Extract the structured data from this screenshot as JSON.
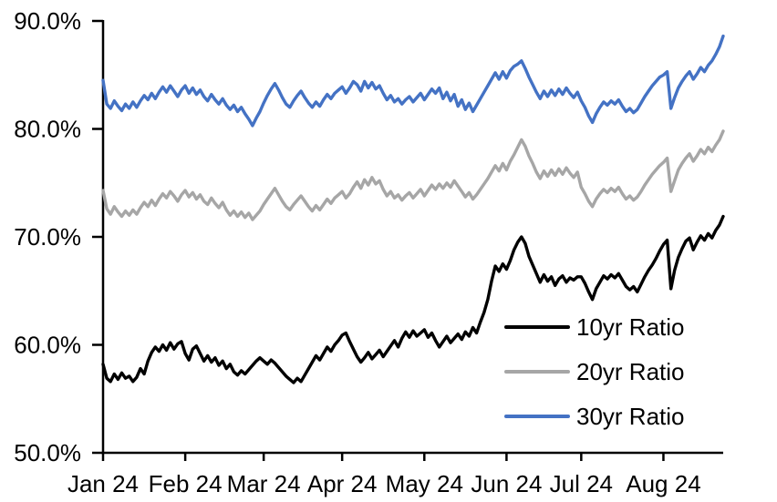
{
  "chart_data": {
    "type": "line",
    "title": "",
    "xlabel": "",
    "ylabel": "",
    "grid": false,
    "ylim": [
      50,
      90
    ],
    "y_tick_step": 10,
    "y_tick_labels": [
      "90.0%",
      "80.0%",
      "70.0%",
      "60.0%",
      "50.0%"
    ],
    "x_tick_labels": [
      "Jan 24",
      "Feb 24",
      "Mar 24",
      "Apr 24",
      "May 24",
      "Jun 24",
      "Jul 24",
      "Aug 24"
    ],
    "month_start_indices": [
      0,
      22,
      43,
      64,
      86,
      108,
      128,
      150
    ],
    "n_points": 167,
    "legend_position": "inside-lower-right",
    "axis_color": "#000000",
    "series": [
      {
        "name": "10yr Ratio",
        "color": "#000000",
        "values": [
          58.2,
          56.9,
          56.6,
          57.3,
          56.8,
          57.4,
          56.9,
          57.1,
          56.6,
          57.0,
          57.8,
          57.3,
          58.5,
          59.3,
          59.8,
          59.4,
          60.0,
          59.5,
          60.2,
          59.6,
          60.1,
          60.3,
          59.2,
          58.6,
          59.6,
          59.9,
          59.2,
          58.5,
          59.0,
          58.4,
          58.8,
          58.1,
          58.5,
          57.8,
          58.2,
          57.5,
          57.2,
          57.6,
          57.3,
          57.7,
          58.1,
          58.5,
          58.8,
          58.5,
          58.2,
          58.6,
          58.3,
          57.9,
          57.5,
          57.1,
          56.8,
          56.5,
          56.9,
          56.6,
          57.2,
          57.8,
          58.4,
          59.0,
          58.6,
          59.2,
          59.8,
          59.4,
          60.0,
          60.4,
          60.9,
          61.1,
          60.3,
          59.6,
          58.9,
          58.4,
          58.8,
          59.3,
          58.7,
          59.1,
          59.5,
          58.9,
          59.4,
          59.9,
          60.4,
          59.8,
          60.6,
          61.2,
          60.7,
          61.3,
          60.8,
          61.1,
          61.4,
          60.7,
          61.1,
          60.4,
          59.8,
          60.3,
          60.8,
          60.2,
          60.6,
          61.0,
          60.5,
          61.2,
          60.8,
          61.6,
          61.1,
          62.1,
          63.0,
          64.2,
          65.9,
          67.3,
          66.8,
          67.5,
          67.0,
          67.8,
          68.8,
          69.5,
          70.0,
          69.4,
          68.2,
          67.4,
          66.6,
          65.8,
          66.5,
          65.9,
          66.3,
          65.5,
          66.1,
          66.4,
          65.8,
          66.2,
          66.0,
          66.3,
          66.3,
          65.7,
          64.9,
          64.2,
          65.2,
          65.8,
          66.4,
          66.1,
          66.5,
          66.2,
          66.6,
          66.0,
          65.4,
          65.1,
          65.4,
          64.9,
          65.6,
          66.3,
          66.9,
          67.4,
          68.0,
          68.7,
          69.3,
          69.7,
          65.2,
          66.9,
          68.1,
          68.9,
          69.6,
          69.9,
          68.8,
          69.5,
          70.1,
          69.7,
          70.3,
          69.9,
          70.6,
          71.1,
          71.9
        ]
      },
      {
        "name": "20yr Ratio",
        "color": "#A6A6A6",
        "values": [
          74.3,
          72.6,
          72.1,
          72.8,
          72.3,
          71.9,
          72.4,
          72.0,
          72.5,
          72.1,
          72.7,
          73.2,
          72.8,
          73.4,
          72.9,
          73.5,
          74.0,
          73.6,
          74.2,
          73.8,
          73.3,
          73.9,
          74.3,
          73.7,
          74.1,
          73.5,
          73.9,
          73.3,
          73.0,
          73.6,
          73.1,
          72.7,
          73.2,
          72.5,
          72.0,
          72.4,
          71.9,
          72.3,
          71.8,
          72.2,
          71.6,
          72.0,
          72.4,
          73.0,
          73.5,
          74.0,
          74.5,
          73.9,
          73.3,
          72.8,
          72.5,
          73.0,
          73.4,
          73.8,
          73.3,
          72.8,
          72.4,
          72.9,
          72.5,
          73.0,
          73.5,
          73.1,
          73.6,
          73.9,
          74.2,
          73.6,
          74.0,
          74.6,
          75.1,
          74.5,
          75.3,
          74.8,
          75.5,
          74.9,
          75.2,
          74.4,
          73.8,
          74.2,
          73.6,
          73.9,
          73.4,
          73.8,
          74.1,
          73.6,
          74.0,
          74.4,
          73.8,
          74.3,
          74.8,
          74.4,
          74.9,
          74.5,
          75.0,
          74.6,
          75.2,
          74.7,
          74.2,
          73.7,
          74.1,
          73.5,
          73.9,
          74.4,
          74.9,
          75.4,
          76.0,
          76.6,
          76.1,
          76.8,
          76.2,
          77.0,
          77.6,
          78.3,
          79.0,
          78.4,
          77.5,
          76.8,
          76.0,
          75.4,
          76.1,
          75.6,
          76.2,
          75.7,
          76.3,
          75.8,
          76.4,
          75.9,
          75.5,
          76.0,
          74.6,
          74.0,
          73.3,
          72.8,
          73.5,
          74.0,
          74.4,
          74.1,
          74.5,
          74.2,
          74.6,
          74.0,
          73.5,
          73.8,
          73.4,
          73.7,
          74.2,
          74.8,
          75.3,
          75.8,
          76.2,
          76.6,
          76.9,
          77.3,
          74.2,
          75.2,
          76.2,
          76.8,
          77.3,
          77.7,
          77.0,
          77.5,
          78.1,
          77.7,
          78.3,
          77.9,
          78.5,
          79.0,
          79.8
        ]
      },
      {
        "name": "30yr Ratio",
        "color": "#4472C4",
        "values": [
          84.5,
          82.3,
          81.9,
          82.6,
          82.1,
          81.7,
          82.3,
          81.9,
          82.5,
          82.0,
          82.6,
          83.1,
          82.7,
          83.3,
          82.8,
          83.4,
          83.9,
          83.4,
          84.0,
          83.5,
          83.0,
          83.6,
          84.0,
          83.3,
          83.8,
          83.2,
          83.6,
          83.0,
          82.6,
          83.2,
          82.7,
          82.3,
          82.8,
          82.2,
          81.8,
          82.2,
          81.6,
          82.0,
          81.4,
          80.9,
          80.3,
          81.0,
          81.6,
          82.4,
          83.1,
          83.7,
          84.2,
          83.6,
          82.9,
          82.3,
          82.0,
          82.6,
          83.1,
          83.5,
          82.9,
          82.4,
          82.0,
          82.5,
          82.1,
          82.7,
          83.2,
          82.8,
          83.3,
          83.6,
          83.9,
          83.3,
          83.8,
          84.4,
          84.1,
          83.5,
          84.4,
          83.8,
          84.3,
          83.7,
          84.0,
          83.3,
          82.7,
          83.1,
          82.5,
          82.8,
          82.3,
          82.7,
          83.0,
          82.5,
          82.9,
          83.3,
          82.7,
          83.2,
          83.7,
          83.3,
          83.8,
          82.8,
          83.4,
          82.6,
          83.2,
          82.1,
          82.7,
          81.8,
          82.4,
          81.6,
          82.2,
          82.8,
          83.4,
          84.0,
          84.6,
          85.2,
          84.6,
          85.3,
          84.7,
          85.4,
          85.8,
          86.0,
          86.3,
          85.6,
          84.8,
          84.1,
          83.4,
          82.8,
          83.5,
          83.0,
          83.6,
          83.1,
          83.7,
          83.2,
          83.8,
          83.3,
          82.9,
          83.4,
          82.6,
          82.0,
          81.2,
          80.6,
          81.4,
          82.0,
          82.5,
          82.2,
          82.6,
          82.3,
          82.7,
          82.1,
          81.6,
          81.9,
          81.5,
          81.8,
          82.4,
          83.0,
          83.5,
          84.0,
          84.4,
          84.8,
          85.0,
          85.3,
          81.9,
          82.9,
          83.8,
          84.4,
          84.9,
          85.3,
          84.6,
          85.1,
          85.7,
          85.3,
          85.9,
          86.3,
          86.9,
          87.6,
          88.6
        ]
      }
    ]
  }
}
